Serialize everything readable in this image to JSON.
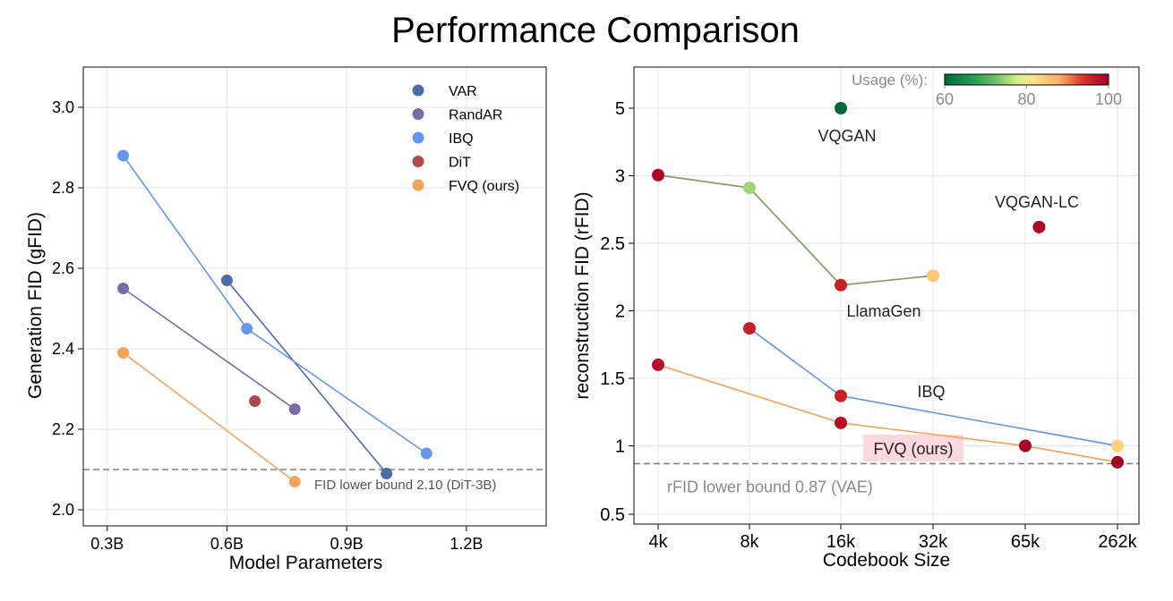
{
  "title": "Performance Comparison",
  "colors": {
    "VAR": "#4c6ea6",
    "RandAR": "#7b6aa8",
    "IBQ": "#6497ec",
    "DiT": "#b04a47",
    "FVQ": "#f2a55a",
    "llamagen_line": "#7f9e5c",
    "fvq_label_bg": "#fbd8e0",
    "dashed": "#808080"
  },
  "chart_data": [
    {
      "type": "line",
      "xlabel": "Model Parameters",
      "ylabel": "Generation FID (gFID)",
      "xlim": [
        0.24,
        1.4
      ],
      "ylim": [
        1.96,
        3.1
      ],
      "xticks": [
        0.3,
        0.6,
        0.9,
        1.2
      ],
      "xtick_labels": [
        "0.3B",
        "0.6B",
        "0.9B",
        "1.2B"
      ],
      "yticks": [
        2.0,
        2.2,
        2.4,
        2.6,
        2.8,
        3.0
      ],
      "ytick_labels": [
        "2.0",
        "2.2",
        "2.4",
        "2.6",
        "2.8",
        "3.0"
      ],
      "grid": true,
      "legend": "top-right",
      "series": [
        {
          "name": "VAR",
          "color_key": "VAR",
          "x": [
            0.6,
            1.0
          ],
          "y": [
            2.57,
            2.09
          ]
        },
        {
          "name": "RandAR",
          "color_key": "RandAR",
          "x": [
            0.34,
            0.77
          ],
          "y": [
            2.55,
            2.25
          ]
        },
        {
          "name": "IBQ",
          "color_key": "IBQ",
          "x": [
            0.34,
            0.65,
            1.1
          ],
          "y": [
            2.88,
            2.45,
            2.14
          ]
        },
        {
          "name": "DiT",
          "color_key": "DiT",
          "x": [
            0.67
          ],
          "y": [
            2.27
          ]
        },
        {
          "name": "FVQ (ours)",
          "color_key": "FVQ",
          "x": [
            0.34,
            0.77
          ],
          "y": [
            2.39,
            2.07
          ]
        }
      ],
      "reference_line": {
        "y": 2.1,
        "label": "FID lower bound 2.10 (DiT-3B)"
      }
    },
    {
      "type": "line",
      "xlabel": "Codebook Size",
      "ylabel": "reconstruction FID (rFID)",
      "categories": [
        "4k",
        "8k",
        "16k",
        "32k",
        "65k",
        "262k"
      ],
      "ylim": [
        0.45,
        5.25
      ],
      "yticks": [
        0.5,
        1,
        1.5,
        2,
        2.5,
        3,
        5
      ],
      "ytick_labels": [
        "0.5",
        "1",
        "1.5",
        "2",
        "2.5",
        "3",
        "5"
      ],
      "y_axis_note": "nonlinear scale: tick 5 drawn directly above tick 3",
      "grid": true,
      "colorbar": {
        "label": "Usage (%):",
        "min": 60,
        "max": 100,
        "ticks": [
          60,
          80,
          100
        ],
        "colormap": "RdYlGn_r"
      },
      "series": [
        {
          "name": "VQGAN",
          "label": "VQGAN",
          "x": [
            2
          ],
          "y": [
            5.0
          ],
          "usage": [
            60
          ],
          "line": false
        },
        {
          "name": "LlamaGen",
          "label": "LlamaGen",
          "x": [
            0,
            1,
            2,
            3
          ],
          "y": [
            3.02,
            2.91,
            2.19,
            2.26
          ],
          "usage": [
            99,
            75,
            96,
            85
          ],
          "line": true,
          "line_color_key": "llamagen_line"
        },
        {
          "name": "VQGAN-LC",
          "label": "VQGAN-LC",
          "x": [
            4.15
          ],
          "y": [
            2.62
          ],
          "usage": [
            99
          ],
          "line": false
        },
        {
          "name": "IBQ",
          "label": "IBQ",
          "x": [
            1,
            2,
            5
          ],
          "y": [
            1.87,
            1.37,
            1.0
          ],
          "usage": [
            96,
            96,
            84
          ],
          "line": true,
          "line_color_key": "IBQ"
        },
        {
          "name": "FVQ (ours)",
          "label": "FVQ (ours)",
          "x": [
            0,
            2,
            4,
            5
          ],
          "y": [
            1.6,
            1.17,
            1.0,
            0.88
          ],
          "usage": [
            98,
            98,
            100,
            100
          ],
          "line": true,
          "line_color_key": "FVQ"
        }
      ],
      "reference_line": {
        "y": 0.87,
        "label": "rFID lower bound 0.87 (VAE)"
      }
    }
  ]
}
